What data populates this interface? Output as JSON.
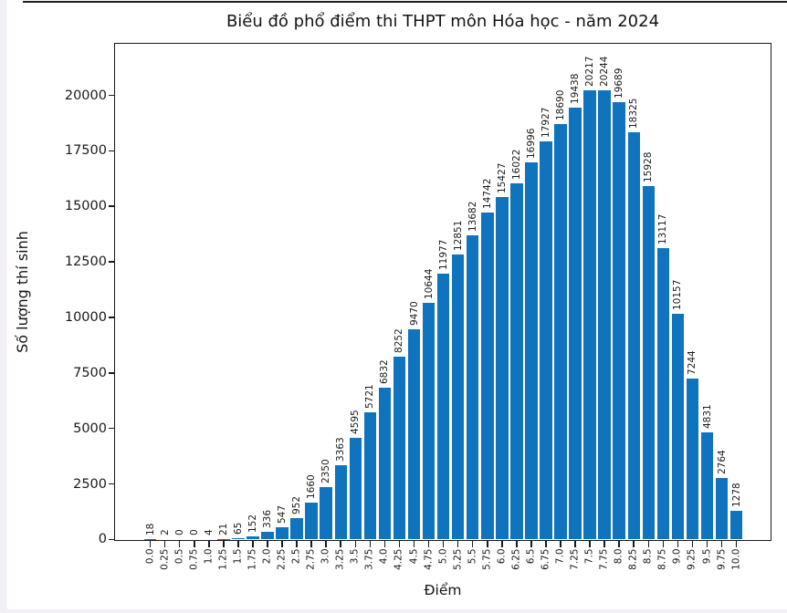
{
  "title": "Biểu đồ phổ điểm thi THPT môn Hóa học - năm 2024",
  "chart_data": {
    "type": "bar",
    "title": "Biểu đồ phổ điểm thi THPT môn Hóa học - năm 2024",
    "xlabel": "Điểm",
    "ylabel": "Số lượng thí sinh",
    "bar_color": "#0f73bd",
    "spine_color": "#1a1a1a",
    "text_color": "#1a1a1a",
    "grid": false,
    "legend": "none",
    "bar_label_rotation": 90,
    "xtick_rotation": 90,
    "categories": [
      "0.0",
      "0.25",
      "0.5",
      "0.75",
      "1.0",
      "1.25",
      "1.5",
      "1.75",
      "2.0",
      "2.25",
      "2.5",
      "2.75",
      "3.0",
      "3.25",
      "3.5",
      "3.75",
      "4.0",
      "4.25",
      "4.5",
      "4.75",
      "5.0",
      "5.25",
      "5.5",
      "5.75",
      "6.0",
      "6.25",
      "6.5",
      "6.75",
      "7.0",
      "7.25",
      "7.5",
      "7.75",
      "8.0",
      "8.25",
      "8.5",
      "8.75",
      "9.0",
      "9.25",
      "9.5",
      "9.75",
      "10.0"
    ],
    "values": [
      18,
      2,
      0,
      0,
      4,
      21,
      65,
      152,
      336,
      547,
      952,
      1660,
      2350,
      3363,
      4595,
      5721,
      6832,
      8252,
      9470,
      10644,
      11977,
      12851,
      13682,
      14742,
      15427,
      16022,
      16996,
      17927,
      18690,
      19438,
      20217,
      20244,
      19689,
      18325,
      15928,
      13117,
      10157,
      7244,
      4831,
      2764,
      1278
    ],
    "yticks": [
      0,
      2500,
      5000,
      7500,
      10000,
      12500,
      15000,
      17500,
      20000
    ],
    "ylim": [
      0,
      22300
    ]
  }
}
